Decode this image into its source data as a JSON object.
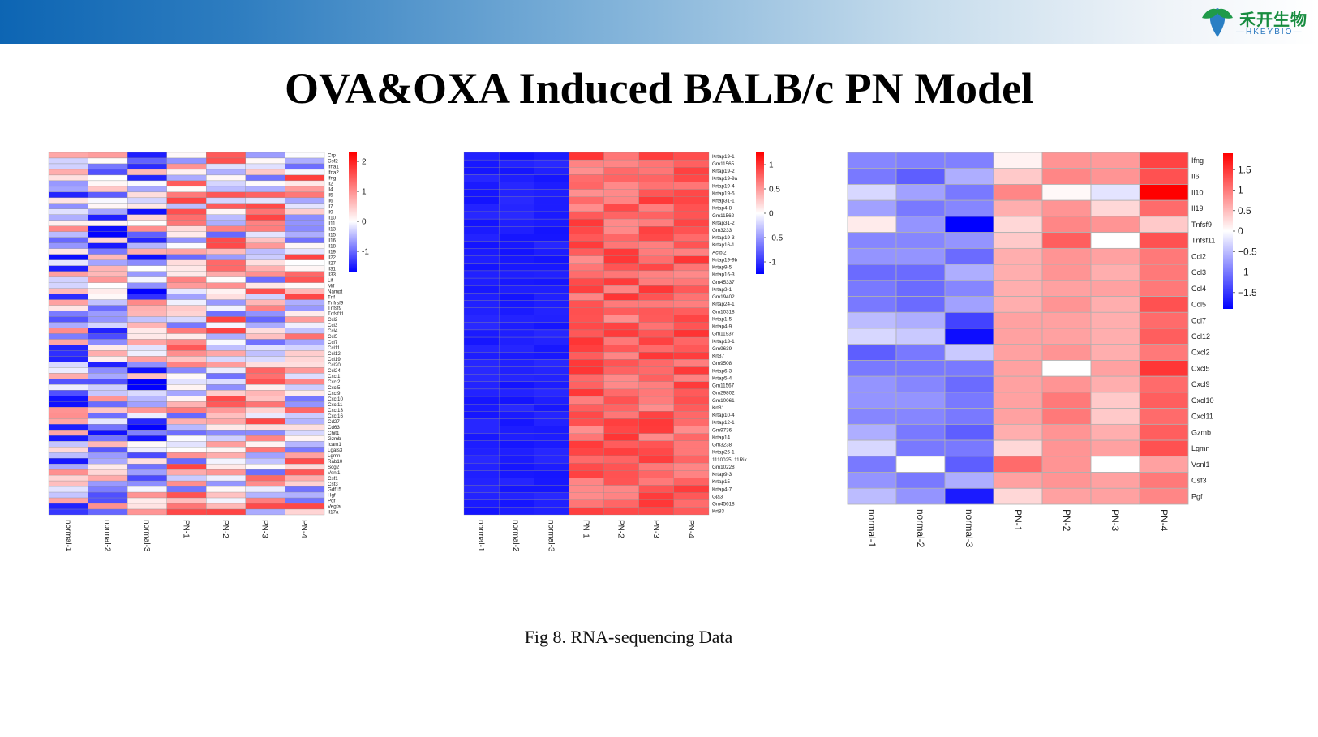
{
  "header": {
    "logo_cn": "禾开生物",
    "logo_en": "—HKEYBIO—",
    "colors": {
      "bar_start": "#0d65b3",
      "bar_end": "#ffffff",
      "logo_green": "#178c3f",
      "logo_blue": "#2b78bf"
    }
  },
  "title": "OVA&OXA Induced BALB/c PN Model",
  "caption": "Fig 8. RNA-sequencing Data",
  "chart_data": [
    {
      "type": "heatmap",
      "title": "",
      "samples": [
        "normal-1",
        "normal-2",
        "normal-3",
        "PN-1",
        "PN-2",
        "PN-3",
        "PN-4"
      ],
      "genes": [
        "Crp",
        "Csf2",
        "Ifna1",
        "Ifna2",
        "Ifng",
        "Il2",
        "Il4",
        "Il5",
        "Il6",
        "Il7",
        "Il9",
        "Il10",
        "Il11",
        "Il13",
        "Il15",
        "Il16",
        "Il18",
        "Il19",
        "Il22",
        "Il27",
        "Il31",
        "Il33",
        "Lif",
        "Mif",
        "Nampt",
        "Tnf",
        "Tnfrsf9",
        "Tnfsf9",
        "Tnfsf11",
        "Ccl2",
        "Ccl3",
        "Ccl4",
        "Ccl5",
        "Ccl7",
        "Ccl11",
        "Ccl12",
        "Ccl19",
        "Ccl20",
        "Ccl24",
        "Cxcl1",
        "Cxcl2",
        "Cxcl5",
        "Cxcl9",
        "Cxcl10",
        "Cxcl11",
        "Cxcl13",
        "Cxcl16",
        "Cd27",
        "Cd63",
        "Chit1",
        "Gzmb",
        "Icam1",
        "Lgals3",
        "Lgmn",
        "Rab10",
        "Scg2",
        "Vsnl1",
        "Csf1",
        "Csf3",
        "Gdf15",
        "Hgf",
        "Pgf",
        "Vegfa",
        "Il17a"
      ],
      "legend_ticks": [
        2,
        1,
        0,
        -1
      ],
      "color_range": [
        -1.7,
        2.3
      ],
      "colors": {
        "low": "#0000ff",
        "mid": "#ffffff",
        "high": "#ff0000"
      }
    },
    {
      "type": "heatmap",
      "title": "",
      "samples": [
        "normal-1",
        "normal-2",
        "normal-3",
        "PN-1",
        "PN-2",
        "PN-3",
        "PN-4"
      ],
      "genes": [
        "Krtap19-1",
        "Gm11565",
        "Krtap19-2",
        "Krtap19-9a",
        "Krtap19-4",
        "Krtap19-5",
        "Krtap31-1",
        "Krtap4-8",
        "Gm11562",
        "Krtap31-2",
        "Gm3233",
        "Krtap19-3",
        "Krtap16-1",
        "Actbl2",
        "Krtap19-9b",
        "Krtap9-5",
        "Krtap16-3",
        "Gm45337",
        "Krtap3-1",
        "Gm19402",
        "Krtap24-1",
        "Gm10318",
        "Krtap1-5",
        "Krtap4-9",
        "Gm11937",
        "Krtap13-1",
        "Gm9639",
        "Krt87",
        "Gm9508",
        "Krtap6-3",
        "Krtap5-4",
        "Gm11567",
        "Gm29802",
        "Gm10061",
        "Krt81",
        "Krtap10-4",
        "Krtap12-1",
        "Gm9736",
        "Krtap14",
        "Gm3238",
        "Krtap26-1",
        "1110025L11Rik",
        "Gm10228",
        "Krtap9-3",
        "Krtap15",
        "Krtap4-7",
        "Gja3",
        "Gm45618",
        "Krt83"
      ],
      "legend_ticks": [
        1,
        0.5,
        0,
        -0.5,
        -1
      ],
      "color_range": [
        -1.25,
        1.25
      ],
      "colors": {
        "low": "#0000ff",
        "mid": "#ffffff",
        "high": "#ff0000"
      }
    },
    {
      "type": "heatmap",
      "title": "",
      "samples": [
        "normal-1",
        "normal-2",
        "normal-3",
        "PN-1",
        "PN-2",
        "PN-3",
        "PN-4"
      ],
      "genes": [
        "Ifng",
        "Il6",
        "Il10",
        "Il19",
        "Tnfsf9",
        "Tnfsf11",
        "Ccl2",
        "Ccl3",
        "Ccl4",
        "Ccl5",
        "Ccl7",
        "Ccl12",
        "Cxcl2",
        "Cxcl5",
        "Cxcl9",
        "Cxcl10",
        "Cxcl11",
        "Gzmb",
        "Lgmn",
        "Vsnl1",
        "Csf3",
        "Pgf"
      ],
      "legend_ticks": [
        "1.5",
        "1",
        "0.5",
        "0",
        "−0.5",
        "−1",
        "−1.5"
      ],
      "color_range": [
        -1.9,
        1.9
      ],
      "colors": {
        "low": "#0000ff",
        "mid": "#ffffff",
        "high": "#ff0000"
      },
      "values": [
        [
          -0.9,
          -0.95,
          -0.95,
          0.1,
          0.8,
          0.75,
          1.4
        ],
        [
          -1.0,
          -1.2,
          -0.6,
          0.4,
          0.9,
          0.8,
          1.3
        ],
        [
          -0.3,
          -0.7,
          -1.0,
          0.9,
          0.05,
          -0.2,
          1.9
        ],
        [
          -0.7,
          -1.0,
          -0.9,
          0.6,
          0.8,
          0.3,
          1.1
        ],
        [
          0.15,
          -0.8,
          -1.9,
          0.3,
          0.9,
          0.8,
          0.4
        ],
        [
          -0.9,
          -0.9,
          -0.8,
          0.4,
          1.2,
          0.0,
          1.3
        ],
        [
          -0.8,
          -0.8,
          -1.1,
          0.6,
          0.8,
          0.7,
          1.0
        ],
        [
          -1.1,
          -1.1,
          -0.6,
          0.6,
          0.8,
          0.6,
          1.0
        ],
        [
          -1.0,
          -1.1,
          -0.9,
          0.6,
          0.7,
          0.7,
          1.0
        ],
        [
          -1.0,
          -1.1,
          -0.7,
          0.6,
          0.8,
          0.6,
          1.3
        ],
        [
          -0.5,
          -0.6,
          -1.4,
          0.7,
          0.7,
          0.6,
          1.1
        ],
        [
          -0.3,
          -0.4,
          -1.8,
          0.7,
          0.7,
          0.6,
          1.2
        ],
        [
          -1.2,
          -1.0,
          -0.4,
          0.7,
          0.8,
          0.6,
          1.0
        ],
        [
          -1.0,
          -1.0,
          -1.0,
          0.7,
          0.0,
          0.7,
          1.5
        ],
        [
          -0.8,
          -0.9,
          -1.1,
          0.7,
          0.8,
          0.6,
          1.1
        ],
        [
          -0.8,
          -0.8,
          -1.0,
          0.7,
          1.0,
          0.4,
          1.2
        ],
        [
          -0.9,
          -0.9,
          -1.0,
          0.7,
          1.0,
          0.4,
          1.1
        ],
        [
          -0.6,
          -1.0,
          -1.2,
          0.6,
          0.8,
          0.6,
          1.2
        ],
        [
          -0.3,
          -1.0,
          -1.0,
          0.3,
          0.8,
          0.7,
          1.3
        ],
        [
          -1.0,
          0.0,
          -1.2,
          1.1,
          0.8,
          0.0,
          0.7
        ],
        [
          -0.8,
          -1.0,
          -0.6,
          0.7,
          0.8,
          0.7,
          1.0
        ],
        [
          -0.5,
          -0.8,
          -1.7,
          0.3,
          0.7,
          0.7,
          0.9
        ]
      ]
    }
  ]
}
